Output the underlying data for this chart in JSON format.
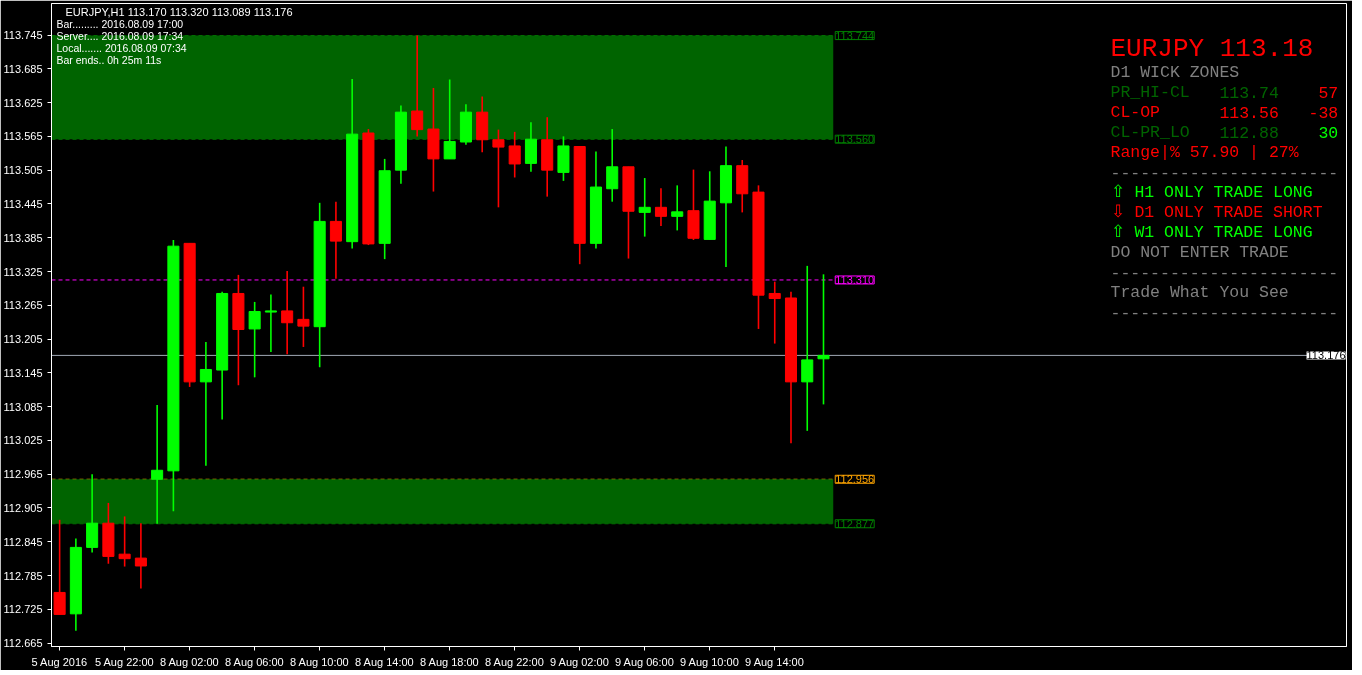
{
  "chart_data": {
    "type": "candlestick",
    "title": "EURJPY,H1  113.170 113.320 113.089 113.176",
    "annotations": [
      "Bar......... 2016.08.09 17:00",
      "Server.... 2016.08.09 17:34",
      "Local....... 2016.08.09 07:34",
      "Bar ends.. 0h 25m 11s",
      "EURJPY 113.18",
      "D1 WICK ZONES",
      "PR_HI-CL",
      "113.74",
      "57",
      "CL-OP",
      "113.56",
      "-38",
      "CL-PR_LO",
      "112.88",
      "30",
      "Range|% 57.90 | 27%",
      "-----------------------",
      "⇧ H1 ONLY TRADE LONG",
      "⇩ D1 ONLY TRADE SHORT",
      "⇧ W1 ONLY TRADE LONG",
      "DO NOT ENTER TRADE",
      "-----------------------",
      "Trade What You See",
      "-----------------------"
    ],
    "categories": [
      "5 Aug 2016",
      null,
      null,
      null,
      "5 Aug 22:00",
      null,
      null,
      null,
      "8 Aug 02:00",
      null,
      null,
      null,
      "8 Aug 06:00",
      null,
      null,
      null,
      "8 Aug 10:00",
      null,
      null,
      null,
      "8 Aug 14:00",
      null,
      null,
      null,
      "8 Aug 18:00",
      null,
      null,
      null,
      "8 Aug 22:00",
      null,
      null,
      null,
      "9 Aug 02:00",
      null,
      null,
      null,
      "9 Aug 06:00",
      null,
      null,
      null,
      "9 Aug 10:00",
      null,
      null,
      null,
      "9 Aug 14:00",
      null,
      null,
      null
    ],
    "ohlc": [
      [
        112.755,
        112.884,
        112.716,
        112.716
      ],
      [
        112.717,
        112.851,
        112.687,
        112.835
      ],
      [
        112.835,
        112.965,
        112.826,
        112.878
      ],
      [
        112.878,
        112.914,
        112.806,
        112.819
      ],
      [
        112.823,
        112.89,
        112.801,
        112.815
      ],
      [
        112.816,
        112.878,
        112.762,
        112.802
      ],
      [
        112.956,
        113.088,
        112.877,
        112.972
      ],
      [
        112.971,
        113.381,
        112.899,
        113.37
      ],
      [
        113.375,
        113.375,
        113.12,
        113.129
      ],
      [
        113.129,
        113.2,
        112.98,
        113.151
      ],
      [
        113.15,
        113.289,
        113.062,
        113.286
      ],
      [
        113.286,
        113.319,
        113.123,
        113.222
      ],
      [
        113.223,
        113.271,
        113.137,
        113.254
      ],
      [
        113.253,
        113.284,
        113.182,
        113.255
      ],
      [
        113.255,
        113.326,
        113.178,
        113.234
      ],
      [
        113.24,
        113.298,
        113.191,
        113.228
      ],
      [
        113.227,
        113.447,
        113.155,
        113.414
      ],
      [
        113.414,
        113.449,
        113.312,
        113.379
      ],
      [
        113.378,
        113.667,
        113.366,
        113.569
      ],
      [
        113.571,
        113.578,
        113.372,
        113.374
      ],
      [
        113.375,
        113.525,
        113.347,
        113.504
      ],
      [
        113.505,
        113.62,
        113.481,
        113.608
      ],
      [
        113.61,
        113.744,
        113.565,
        113.577
      ],
      [
        113.578,
        113.651,
        113.467,
        113.525
      ],
      [
        113.525,
        113.666,
        113.525,
        113.556
      ],
      [
        113.555,
        113.622,
        113.55,
        113.608
      ],
      [
        113.608,
        113.636,
        113.537,
        113.559
      ],
      [
        113.559,
        113.577,
        113.439,
        113.546
      ],
      [
        113.548,
        113.573,
        113.492,
        113.516
      ],
      [
        113.517,
        113.59,
        113.502,
        113.56
      ],
      [
        113.559,
        113.599,
        113.458,
        113.505
      ],
      [
        113.501,
        113.565,
        113.486,
        113.548
      ],
      [
        113.547,
        113.547,
        113.338,
        113.375
      ],
      [
        113.375,
        113.538,
        113.366,
        113.475
      ],
      [
        113.472,
        113.578,
        113.449,
        113.511
      ],
      [
        113.511,
        113.511,
        113.348,
        113.432
      ],
      [
        113.43,
        113.491,
        113.387,
        113.439
      ],
      [
        113.439,
        113.473,
        113.406,
        113.423
      ],
      [
        113.423,
        113.478,
        113.398,
        113.431
      ],
      [
        113.433,
        113.506,
        113.381,
        113.384
      ],
      [
        113.382,
        113.503,
        113.382,
        113.45
      ],
      [
        113.447,
        113.547,
        113.333,
        113.513
      ],
      [
        113.513,
        113.523,
        113.43,
        113.463
      ],
      [
        113.466,
        113.478,
        113.223,
        113.283
      ],
      [
        113.286,
        113.307,
        113.197,
        113.277
      ],
      [
        113.278,
        113.289,
        113.02,
        113.129
      ],
      [
        113.129,
        113.335,
        113.042,
        113.168
      ],
      [
        113.17,
        113.32,
        113.089,
        113.176
      ]
    ],
    "colors": [
      "#ff0000",
      "#00ff00",
      "#00ff00",
      "#ff0000",
      "#ff0000",
      "#ff0000",
      "#00ff00",
      "#00ff00",
      "#ff0000",
      "#00ff00",
      "#00ff00",
      "#ff0000",
      "#00ff00",
      "#00ff00",
      "#ff0000",
      "#ff0000",
      "#00ff00",
      "#ff0000",
      "#00ff00",
      "#ff0000",
      "#00ff00",
      "#00ff00",
      "#ff0000",
      "#ff0000",
      "#00ff00",
      "#00ff00",
      "#ff0000",
      "#ff0000",
      "#ff0000",
      "#00ff00",
      "#ff0000",
      "#00ff00",
      "#ff0000",
      "#00ff00",
      "#00ff00",
      "#ff0000",
      "#00ff00",
      "#ff0000",
      "#00ff00",
      "#ff0000",
      "#00ff00",
      "#00ff00",
      "#ff0000",
      "#ff0000",
      "#ff0000",
      "#ff0000",
      "#00ff00",
      "#00ff00"
    ],
    "ylim": [
      112.659,
      113.801
    ],
    "yticks": [
      113.745,
      113.685,
      113.625,
      113.565,
      113.505,
      113.445,
      113.385,
      113.325,
      113.265,
      113.205,
      113.145,
      113.085,
      113.025,
      112.965,
      112.905,
      112.845,
      112.785,
      112.725,
      112.665
    ],
    "bands": [
      {
        "axis": "y",
        "from": 113.56,
        "to": 113.744,
        "color": "#006400"
      },
      {
        "axis": "y",
        "from": 112.877,
        "to": 112.956,
        "color": "#006400"
      }
    ],
    "ref_lines": [
      {
        "axis": "y",
        "value": 113.744,
        "label": "113.744",
        "color": "#008000",
        "line_style": "dashed"
      },
      {
        "axis": "y",
        "value": 113.56,
        "label": "113.560",
        "color": "#008000",
        "line_style": "dashed"
      },
      {
        "axis": "y",
        "value": 113.31,
        "label": "113.310",
        "color": "#ff00ff",
        "line_style": "dashed"
      },
      {
        "axis": "y",
        "value": 112.956,
        "label": "112.956",
        "color": "#ffa500",
        "line_style": "dashed"
      },
      {
        "axis": "y",
        "value": 112.877,
        "label": "112.877",
        "color": "#008000",
        "line_style": "dashed"
      },
      {
        "axis": "y",
        "value": 113.176,
        "label": "113.176",
        "color": "#a0a8b4",
        "line_style": "solid"
      }
    ]
  }
}
